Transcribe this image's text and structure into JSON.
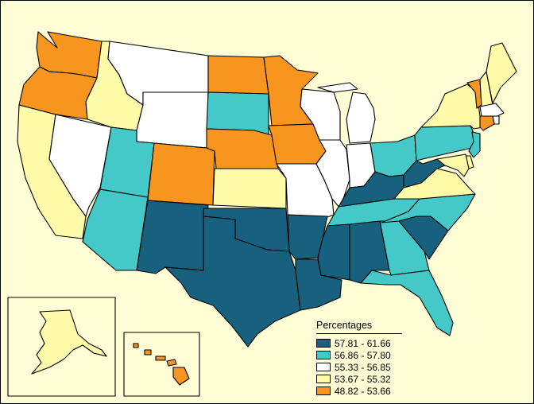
{
  "legend": {
    "title": "Percentages",
    "classes": [
      {
        "label": "57.81 - 61.66",
        "color": "#17607e"
      },
      {
        "label": "56.86 - 57.80",
        "color": "#45c8c8"
      },
      {
        "label": "55.33 - 56.85",
        "color": "#ffffff"
      },
      {
        "label": "53.67 - 55.32",
        "color": "#fffba8"
      },
      {
        "label": "48.82 - 53.66",
        "color": "#f8951f"
      }
    ]
  },
  "colors": {
    "background": "#fefdd6",
    "border": "#000000"
  },
  "states": {
    "WA": 4,
    "OR": 4,
    "CA": 3,
    "NV": 2,
    "ID": 3,
    "MT": 2,
    "WY": 2,
    "UT": 1,
    "AZ": 1,
    "CO": 4,
    "NM": 0,
    "ND": 4,
    "SD": 1,
    "NE": 4,
    "KS": 3,
    "OK": 0,
    "TX": 0,
    "MN": 4,
    "IA": 4,
    "MO": 2,
    "AR": 0,
    "LA": 0,
    "WI": 2,
    "IL": 2,
    "MI": 2,
    "IN": 2,
    "OH": 1,
    "KY": 0,
    "TN": 1,
    "MS": 0,
    "AL": 0,
    "GA": 1,
    "FL": 1,
    "SC": 0,
    "NC": 1,
    "VA": 3,
    "WV": 0,
    "PA": 1,
    "NY": 3,
    "VT": 4,
    "NH": 3,
    "ME": 3,
    "MA": 2,
    "RI": 2,
    "CT": 4,
    "NJ": 1,
    "DE": 3,
    "MD": 3,
    "AK": 3,
    "HI": 4
  }
}
